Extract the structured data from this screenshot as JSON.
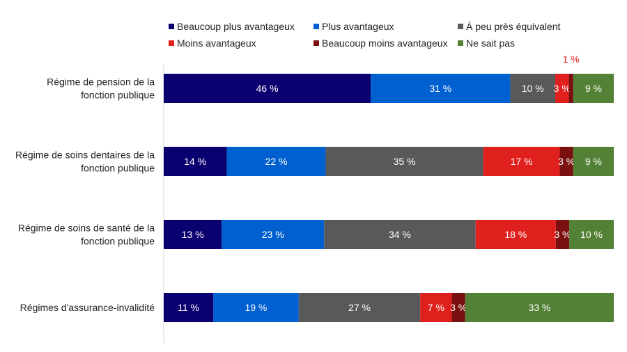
{
  "chart_data": {
    "type": "bar",
    "orientation": "horizontal",
    "stacked": true,
    "value_format": "{v} %",
    "title": "",
    "xlabel": "",
    "ylabel": "",
    "grid": false,
    "legend_position": "top",
    "categories": [
      "Régime de pension de la fonction publique",
      "Régime de soins dentaires de la fonction publique",
      "Régime de soins de santé de la fonction publique",
      "Régimes d'assurance-invalidité"
    ],
    "series": [
      {
        "name": "Beaucoup plus avantageux",
        "color": "#0b0070",
        "values": [
          46,
          14,
          13,
          11
        ]
      },
      {
        "name": "Plus avantageux",
        "color": "#0060d0",
        "values": [
          31,
          22,
          23,
          19
        ]
      },
      {
        "name": "À peu près équivalent",
        "color": "#595959",
        "values": [
          10,
          35,
          34,
          27
        ]
      },
      {
        "name": "Moins avantageux",
        "color": "#e0201c",
        "values": [
          3,
          17,
          18,
          7
        ]
      },
      {
        "name": "Beaucoup moins avantageux",
        "color": "#7b1010",
        "values": [
          1,
          3,
          3,
          3
        ]
      },
      {
        "name": "Ne sait pas",
        "color": "#538135",
        "values": [
          9,
          9,
          10,
          33
        ]
      }
    ],
    "category_label_lines": [
      [
        "Régime de pension de la",
        "fonction publique"
      ],
      [
        "Régime de soins dentaires de la",
        "fonction publique"
      ],
      [
        "Régime de soins de santé de la",
        "fonction publique"
      ],
      [
        "Régimes d'assurance-invalidité"
      ]
    ],
    "outside_label_color": "#e0201c"
  }
}
